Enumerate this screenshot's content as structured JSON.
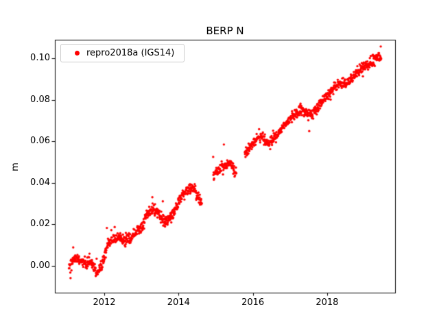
{
  "chart_data": {
    "type": "scatter",
    "title": "BERP N",
    "xlabel": "",
    "ylabel": "m",
    "xlim": [
      2010.67,
      2019.83
    ],
    "ylim": [
      -0.013,
      0.109
    ],
    "xticks": [
      2012,
      2014,
      2016,
      2018
    ],
    "xtick_labels": [
      "2012",
      "2014",
      "2016",
      "2018"
    ],
    "yticks": [
      0.0,
      0.02,
      0.04,
      0.06,
      0.08,
      0.1
    ],
    "ytick_labels": [
      "0.00",
      "0.02",
      "0.04",
      "0.06",
      "0.08",
      "0.10"
    ],
    "grid": false,
    "legend": {
      "position": "upper left",
      "entries": [
        {
          "label": "repro2018a (IGS14)",
          "color": "#ff0000",
          "marker": "dot"
        }
      ]
    },
    "series": [
      {
        "name": "repro2018a (IGS14)",
        "color": "#ff0000",
        "marker": "dot",
        "marker_radius_px": 1.7,
        "x_start": 2011.05,
        "x_end": 2019.46,
        "sample_step_years": 0.006,
        "scatter_band_std_m": 0.0013,
        "outlier_fraction": 0.04,
        "gaps": [
          [
            2014.63,
            2014.93
          ],
          [
            2015.56,
            2015.78
          ]
        ],
        "trend_anchors": [
          [
            2011.05,
            0.0
          ],
          [
            2011.2,
            0.004
          ],
          [
            2011.35,
            0.003
          ],
          [
            2011.5,
            0.001
          ],
          [
            2011.65,
            0.002
          ],
          [
            2011.8,
            -0.004
          ],
          [
            2011.95,
            0.001
          ],
          [
            2012.1,
            0.011
          ],
          [
            2012.25,
            0.013
          ],
          [
            2012.4,
            0.014
          ],
          [
            2012.55,
            0.012
          ],
          [
            2012.7,
            0.013
          ],
          [
            2012.85,
            0.016
          ],
          [
            2013.0,
            0.018
          ],
          [
            2013.15,
            0.025
          ],
          [
            2013.3,
            0.028
          ],
          [
            2013.45,
            0.026
          ],
          [
            2013.6,
            0.021
          ],
          [
            2013.75,
            0.022
          ],
          [
            2013.9,
            0.026
          ],
          [
            2014.05,
            0.032
          ],
          [
            2014.2,
            0.036
          ],
          [
            2014.35,
            0.038
          ],
          [
            2014.5,
            0.034
          ],
          [
            2014.62,
            0.03
          ],
          [
            2014.95,
            0.045
          ],
          [
            2015.1,
            0.046
          ],
          [
            2015.25,
            0.048
          ],
          [
            2015.4,
            0.05
          ],
          [
            2015.52,
            0.044
          ],
          [
            2015.8,
            0.054
          ],
          [
            2015.95,
            0.058
          ],
          [
            2016.1,
            0.061
          ],
          [
            2016.25,
            0.062
          ],
          [
            2016.4,
            0.059
          ],
          [
            2016.55,
            0.061
          ],
          [
            2016.7,
            0.064
          ],
          [
            2016.85,
            0.068
          ],
          [
            2017.0,
            0.071
          ],
          [
            2017.15,
            0.073
          ],
          [
            2017.3,
            0.075
          ],
          [
            2017.45,
            0.074
          ],
          [
            2017.6,
            0.073
          ],
          [
            2017.75,
            0.076
          ],
          [
            2017.9,
            0.08
          ],
          [
            2018.05,
            0.083
          ],
          [
            2018.2,
            0.086
          ],
          [
            2018.35,
            0.088
          ],
          [
            2018.5,
            0.088
          ],
          [
            2018.65,
            0.09
          ],
          [
            2018.8,
            0.093
          ],
          [
            2018.95,
            0.095
          ],
          [
            2019.1,
            0.097
          ],
          [
            2019.25,
            0.099
          ],
          [
            2019.4,
            0.101
          ],
          [
            2019.46,
            0.1
          ]
        ]
      }
    ]
  }
}
